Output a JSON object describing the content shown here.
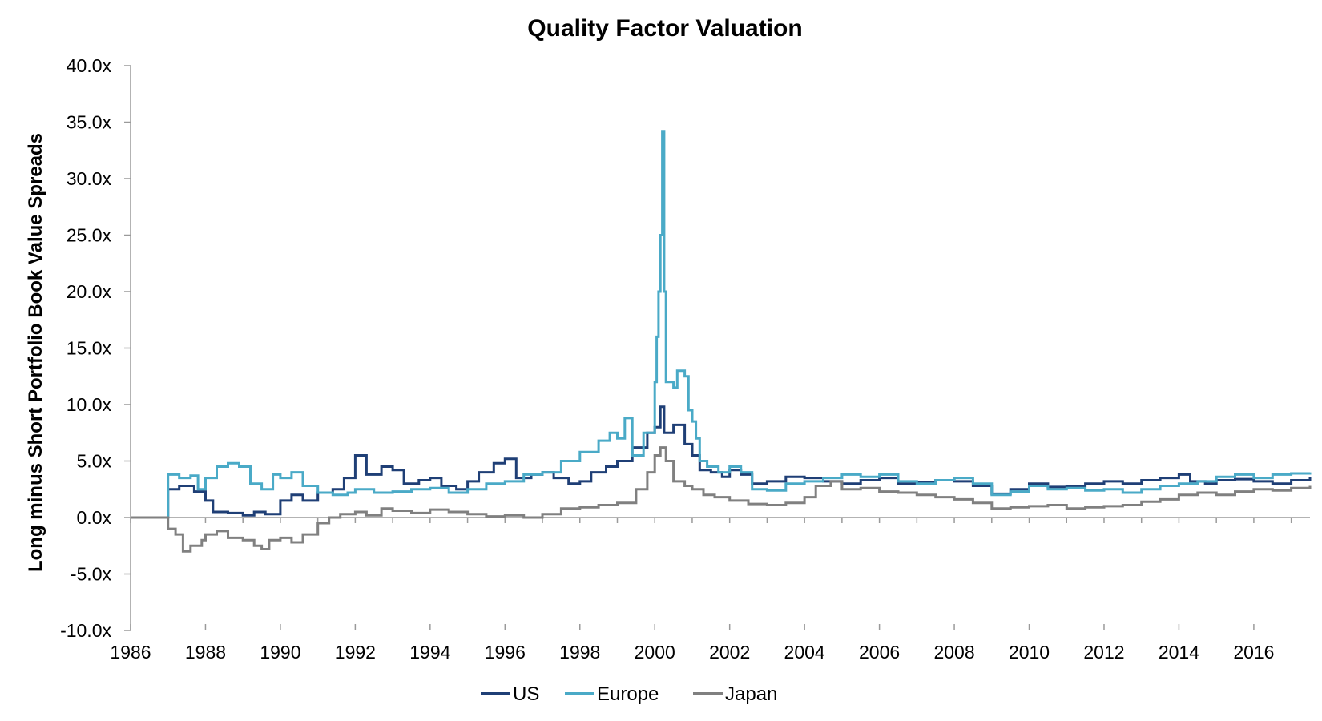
{
  "chart_data": {
    "type": "line",
    "title": "Quality Factor Valuation",
    "xlabel": "",
    "ylabel": "Long minus Short Portfolio Book Value Spreads",
    "xlim": [
      1986,
      2017.5
    ],
    "ylim": [
      -10,
      40
    ],
    "y_ticks": [
      -10,
      -5,
      0,
      5,
      10,
      15,
      20,
      25,
      30,
      35,
      40
    ],
    "y_tick_labels": [
      "-10.0x",
      "-5.0x",
      "0.0x",
      "5.0x",
      "10.0x",
      "15.0x",
      "20.0x",
      "25.0x",
      "30.0x",
      "35.0x",
      "40.0x"
    ],
    "x_ticks": [
      1986,
      1988,
      1990,
      1992,
      1994,
      1996,
      1998,
      2000,
      2002,
      2004,
      2006,
      2008,
      2010,
      2012,
      2014,
      2016
    ],
    "x_tick_labels": [
      "1986",
      "1988",
      "1990",
      "1992",
      "1994",
      "1996",
      "1998",
      "2000",
      "2002",
      "2004",
      "2006",
      "2008",
      "2010",
      "2012",
      "2014",
      "2016"
    ],
    "grid": false,
    "legend_position": "bottom",
    "series": [
      {
        "name": "US",
        "color": "#1f3f76",
        "points": [
          [
            1986.0,
            0.0
          ],
          [
            1986.9,
            0.0
          ],
          [
            1987.0,
            2.5
          ],
          [
            1987.3,
            2.8
          ],
          [
            1987.7,
            2.3
          ],
          [
            1988.0,
            1.5
          ],
          [
            1988.2,
            0.5
          ],
          [
            1988.6,
            0.4
          ],
          [
            1989.0,
            0.2
          ],
          [
            1989.3,
            0.5
          ],
          [
            1989.6,
            0.3
          ],
          [
            1990.0,
            1.5
          ],
          [
            1990.3,
            2.0
          ],
          [
            1990.6,
            1.5
          ],
          [
            1991.0,
            2.2
          ],
          [
            1991.4,
            2.5
          ],
          [
            1991.7,
            3.5
          ],
          [
            1992.0,
            5.5
          ],
          [
            1992.3,
            3.8
          ],
          [
            1992.7,
            4.5
          ],
          [
            1993.0,
            4.2
          ],
          [
            1993.3,
            3.0
          ],
          [
            1993.7,
            3.3
          ],
          [
            1994.0,
            3.5
          ],
          [
            1994.3,
            2.8
          ],
          [
            1994.7,
            2.5
          ],
          [
            1995.0,
            3.2
          ],
          [
            1995.3,
            4.0
          ],
          [
            1995.7,
            4.8
          ],
          [
            1996.0,
            5.2
          ],
          [
            1996.3,
            3.5
          ],
          [
            1996.7,
            3.8
          ],
          [
            1997.0,
            4.0
          ],
          [
            1997.3,
            3.5
          ],
          [
            1997.7,
            3.0
          ],
          [
            1998.0,
            3.2
          ],
          [
            1998.3,
            4.0
          ],
          [
            1998.7,
            4.5
          ],
          [
            1999.0,
            5.0
          ],
          [
            1999.4,
            6.2
          ],
          [
            1999.8,
            7.5
          ],
          [
            2000.0,
            8.0
          ],
          [
            2000.15,
            9.8
          ],
          [
            2000.25,
            7.5
          ],
          [
            2000.5,
            8.2
          ],
          [
            2000.8,
            6.5
          ],
          [
            2001.0,
            5.5
          ],
          [
            2001.2,
            4.2
          ],
          [
            2001.5,
            4.0
          ],
          [
            2001.8,
            3.6
          ],
          [
            2002.0,
            4.2
          ],
          [
            2002.3,
            3.8
          ],
          [
            2002.6,
            3.0
          ],
          [
            2003.0,
            3.2
          ],
          [
            2003.5,
            3.6
          ],
          [
            2004.0,
            3.5
          ],
          [
            2004.5,
            3.2
          ],
          [
            2005.0,
            3.0
          ],
          [
            2005.5,
            3.3
          ],
          [
            2006.0,
            3.5
          ],
          [
            2006.5,
            3.0
          ],
          [
            2007.0,
            3.1
          ],
          [
            2007.5,
            3.3
          ],
          [
            2008.0,
            3.2
          ],
          [
            2008.5,
            2.8
          ],
          [
            2009.0,
            2.1
          ],
          [
            2009.5,
            2.5
          ],
          [
            2010.0,
            3.0
          ],
          [
            2010.5,
            2.7
          ],
          [
            2011.0,
            2.8
          ],
          [
            2011.5,
            3.0
          ],
          [
            2012.0,
            3.2
          ],
          [
            2012.5,
            3.0
          ],
          [
            2013.0,
            3.3
          ],
          [
            2013.5,
            3.5
          ],
          [
            2014.0,
            3.8
          ],
          [
            2014.3,
            3.2
          ],
          [
            2014.7,
            3.0
          ],
          [
            2015.0,
            3.3
          ],
          [
            2015.5,
            3.4
          ],
          [
            2016.0,
            3.2
          ],
          [
            2016.5,
            3.0
          ],
          [
            2017.0,
            3.3
          ],
          [
            2017.5,
            3.6
          ]
        ]
      },
      {
        "name": "Europe",
        "color": "#4aaac7",
        "points": [
          [
            1986.0,
            0.0
          ],
          [
            1986.9,
            0.0
          ],
          [
            1987.0,
            3.8
          ],
          [
            1987.3,
            3.5
          ],
          [
            1987.6,
            3.7
          ],
          [
            1987.8,
            2.5
          ],
          [
            1988.0,
            3.5
          ],
          [
            1988.3,
            4.5
          ],
          [
            1988.6,
            4.8
          ],
          [
            1988.9,
            4.5
          ],
          [
            1989.2,
            3.0
          ],
          [
            1989.5,
            2.5
          ],
          [
            1989.8,
            3.8
          ],
          [
            1990.0,
            3.5
          ],
          [
            1990.3,
            4.0
          ],
          [
            1990.6,
            2.8
          ],
          [
            1991.0,
            2.2
          ],
          [
            1991.4,
            2.0
          ],
          [
            1991.8,
            2.2
          ],
          [
            1992.0,
            2.5
          ],
          [
            1992.5,
            2.2
          ],
          [
            1993.0,
            2.3
          ],
          [
            1993.5,
            2.5
          ],
          [
            1994.0,
            2.6
          ],
          [
            1994.5,
            2.2
          ],
          [
            1995.0,
            2.5
          ],
          [
            1995.5,
            3.0
          ],
          [
            1996.0,
            3.2
          ],
          [
            1996.5,
            3.8
          ],
          [
            1997.0,
            4.0
          ],
          [
            1997.5,
            5.0
          ],
          [
            1998.0,
            5.8
          ],
          [
            1998.5,
            6.8
          ],
          [
            1998.8,
            7.5
          ],
          [
            1999.0,
            7.0
          ],
          [
            1999.2,
            8.8
          ],
          [
            1999.4,
            5.5
          ],
          [
            1999.7,
            7.5
          ],
          [
            2000.0,
            12.0
          ],
          [
            2000.05,
            16.0
          ],
          [
            2000.1,
            20.0
          ],
          [
            2000.15,
            25.0
          ],
          [
            2000.2,
            34.2
          ],
          [
            2000.25,
            20.0
          ],
          [
            2000.3,
            12.0
          ],
          [
            2000.5,
            11.5
          ],
          [
            2000.6,
            13.0
          ],
          [
            2000.8,
            12.5
          ],
          [
            2000.9,
            9.5
          ],
          [
            2001.0,
            8.5
          ],
          [
            2001.1,
            7.0
          ],
          [
            2001.2,
            5.0
          ],
          [
            2001.4,
            4.5
          ],
          [
            2001.7,
            4.0
          ],
          [
            2002.0,
            4.5
          ],
          [
            2002.3,
            4.0
          ],
          [
            2002.6,
            2.5
          ],
          [
            2003.0,
            2.4
          ],
          [
            2003.5,
            3.0
          ],
          [
            2004.0,
            3.2
          ],
          [
            2004.5,
            3.5
          ],
          [
            2005.0,
            3.8
          ],
          [
            2005.5,
            3.6
          ],
          [
            2006.0,
            3.8
          ],
          [
            2006.5,
            3.2
          ],
          [
            2007.0,
            3.0
          ],
          [
            2007.5,
            3.3
          ],
          [
            2008.0,
            3.5
          ],
          [
            2008.5,
            3.0
          ],
          [
            2009.0,
            2.0
          ],
          [
            2009.5,
            2.3
          ],
          [
            2010.0,
            2.8
          ],
          [
            2010.5,
            2.5
          ],
          [
            2011.0,
            2.6
          ],
          [
            2011.5,
            2.4
          ],
          [
            2012.0,
            2.5
          ],
          [
            2012.5,
            2.2
          ],
          [
            2013.0,
            2.5
          ],
          [
            2013.5,
            2.8
          ],
          [
            2014.0,
            3.0
          ],
          [
            2014.5,
            3.2
          ],
          [
            2015.0,
            3.6
          ],
          [
            2015.5,
            3.8
          ],
          [
            2016.0,
            3.5
          ],
          [
            2016.5,
            3.8
          ],
          [
            2017.0,
            3.9
          ],
          [
            2017.5,
            4.0
          ]
        ]
      },
      {
        "name": "Japan",
        "color": "#808080",
        "points": [
          [
            1986.0,
            0.0
          ],
          [
            1986.9,
            0.0
          ],
          [
            1987.0,
            -1.0
          ],
          [
            1987.2,
            -1.5
          ],
          [
            1987.4,
            -3.0
          ],
          [
            1987.6,
            -2.5
          ],
          [
            1987.9,
            -2.0
          ],
          [
            1988.0,
            -1.5
          ],
          [
            1988.3,
            -1.2
          ],
          [
            1988.6,
            -1.8
          ],
          [
            1989.0,
            -2.0
          ],
          [
            1989.3,
            -2.5
          ],
          [
            1989.5,
            -2.8
          ],
          [
            1989.7,
            -2.0
          ],
          [
            1990.0,
            -1.8
          ],
          [
            1990.3,
            -2.2
          ],
          [
            1990.6,
            -1.5
          ],
          [
            1991.0,
            -0.5
          ],
          [
            1991.3,
            0.0
          ],
          [
            1991.6,
            0.3
          ],
          [
            1992.0,
            0.5
          ],
          [
            1992.3,
            0.2
          ],
          [
            1992.7,
            0.8
          ],
          [
            1993.0,
            0.6
          ],
          [
            1993.5,
            0.4
          ],
          [
            1994.0,
            0.7
          ],
          [
            1994.5,
            0.5
          ],
          [
            1995.0,
            0.3
          ],
          [
            1995.5,
            0.1
          ],
          [
            1996.0,
            0.2
          ],
          [
            1996.5,
            0.0
          ],
          [
            1997.0,
            0.3
          ],
          [
            1997.5,
            0.8
          ],
          [
            1998.0,
            0.9
          ],
          [
            1998.5,
            1.1
          ],
          [
            1999.0,
            1.3
          ],
          [
            1999.5,
            2.5
          ],
          [
            1999.8,
            4.0
          ],
          [
            2000.0,
            5.5
          ],
          [
            2000.15,
            6.2
          ],
          [
            2000.3,
            5.0
          ],
          [
            2000.5,
            3.2
          ],
          [
            2000.8,
            2.8
          ],
          [
            2001.0,
            2.5
          ],
          [
            2001.3,
            2.0
          ],
          [
            2001.6,
            1.8
          ],
          [
            2002.0,
            1.5
          ],
          [
            2002.5,
            1.2
          ],
          [
            2003.0,
            1.1
          ],
          [
            2003.5,
            1.3
          ],
          [
            2004.0,
            1.8
          ],
          [
            2004.3,
            2.8
          ],
          [
            2004.7,
            3.2
          ],
          [
            2005.0,
            2.5
          ],
          [
            2005.5,
            2.6
          ],
          [
            2006.0,
            2.3
          ],
          [
            2006.5,
            2.2
          ],
          [
            2007.0,
            2.0
          ],
          [
            2007.5,
            1.8
          ],
          [
            2008.0,
            1.6
          ],
          [
            2008.5,
            1.3
          ],
          [
            2009.0,
            0.8
          ],
          [
            2009.5,
            0.9
          ],
          [
            2010.0,
            1.0
          ],
          [
            2010.5,
            1.1
          ],
          [
            2011.0,
            0.8
          ],
          [
            2011.5,
            0.9
          ],
          [
            2012.0,
            1.0
          ],
          [
            2012.5,
            1.1
          ],
          [
            2013.0,
            1.4
          ],
          [
            2013.5,
            1.6
          ],
          [
            2014.0,
            2.0
          ],
          [
            2014.5,
            2.2
          ],
          [
            2015.0,
            2.0
          ],
          [
            2015.5,
            2.3
          ],
          [
            2016.0,
            2.5
          ],
          [
            2016.5,
            2.4
          ],
          [
            2017.0,
            2.6
          ],
          [
            2017.5,
            2.8
          ]
        ]
      }
    ]
  }
}
